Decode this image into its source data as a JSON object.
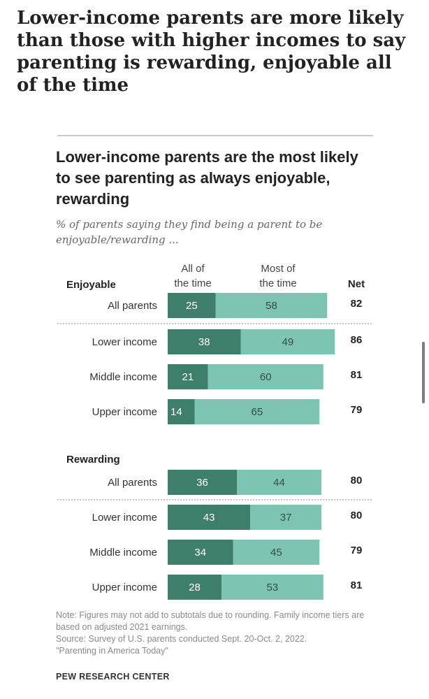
{
  "headline": "Lower-income parents are more likely than those with higher incomes to say parenting is rewarding, enjoyable all of the time",
  "chart_data": {
    "type": "bar",
    "stacked": true,
    "title": "Lower-income parents are the most likely to see parenting as always enjoyable, rewarding",
    "subtitle": "% of parents saying they find being a parent to be enjoyable/rewarding ...",
    "column_headers": {
      "all": "All of the time",
      "most": "Most of the time",
      "net": "Net"
    },
    "colors": {
      "all": "#3d7f6a",
      "most": "#7ec4b2",
      "separator": "#b0b0b0"
    },
    "groups": [
      {
        "name": "Enjoyable",
        "rows": [
          {
            "label": "All parents",
            "all": 25,
            "most": 58,
            "net": 82
          },
          {
            "label": "Lower income",
            "all": 38,
            "most": 49,
            "net": 86
          },
          {
            "label": "Middle income",
            "all": 21,
            "most": 60,
            "net": 81
          },
          {
            "label": "Upper income",
            "all": 14,
            "most": 65,
            "net": 79
          }
        ]
      },
      {
        "name": "Rewarding",
        "rows": [
          {
            "label": "All parents",
            "all": 36,
            "most": 44,
            "net": 80
          },
          {
            "label": "Lower income",
            "all": 43,
            "most": 37,
            "net": 80
          },
          {
            "label": "Middle income",
            "all": 34,
            "most": 45,
            "net": 79
          },
          {
            "label": "Upper income",
            "all": 28,
            "most": 53,
            "net": 81
          }
        ]
      }
    ]
  },
  "footer": {
    "note": "Note: Figures may not add to subtotals due to rounding. Family income tiers are based on adjusted 2021 earnings.",
    "source": "Source: Survey of U.S. parents conducted Sept. 20-Oct. 2, 2022.",
    "report": "\"Parenting in America Today\"",
    "brand": "PEW RESEARCH CENTER"
  }
}
